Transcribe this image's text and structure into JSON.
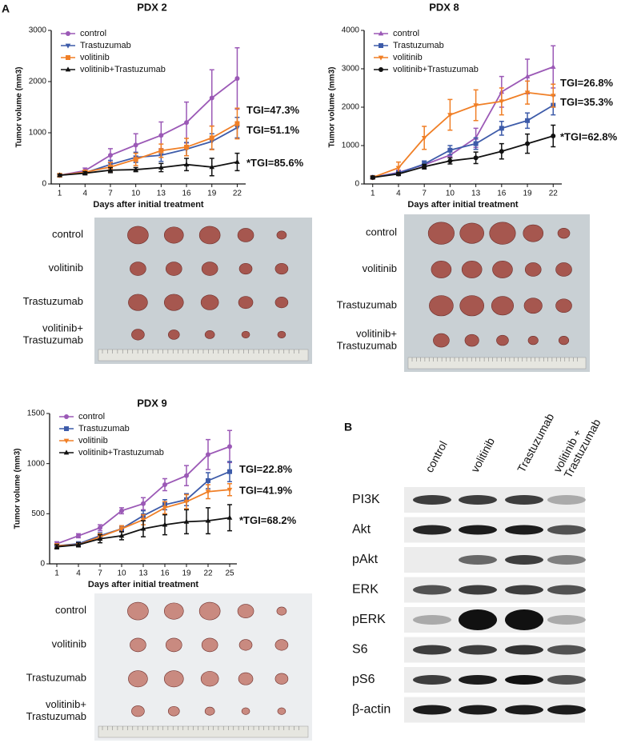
{
  "panels": {
    "a": "A",
    "b": "B"
  },
  "chart_data": [
    {
      "type": "line",
      "title": "PDX 2",
      "x_label": "Days after initial treatment",
      "y_label": "Tumor volume (mm3)",
      "x": [
        1,
        4,
        7,
        10,
        13,
        16,
        19,
        22
      ],
      "xlim": [
        0,
        23
      ],
      "xticks": [
        1,
        4,
        7,
        10,
        13,
        16,
        19,
        22
      ],
      "ylim": [
        0,
        3000
      ],
      "yticks": [
        0,
        1000,
        2000,
        3000
      ],
      "series": [
        {
          "name": "control",
          "color": "#9b59b6",
          "marker": "circle",
          "values": [
            170,
            260,
            560,
            760,
            950,
            1200,
            1680,
            2060
          ],
          "errors": [
            20,
            50,
            130,
            220,
            260,
            400,
            550,
            600
          ]
        },
        {
          "name": "Trastuzumab",
          "color": "#3d5ba9",
          "marker": "triangle-down",
          "values": [
            170,
            220,
            380,
            520,
            560,
            680,
            830,
            1100
          ],
          "errors": [
            20,
            40,
            80,
            100,
            120,
            130,
            150,
            200
          ],
          "annotation": "TGI=51.1%"
        },
        {
          "name": "volitinib",
          "color": "#f07f26",
          "marker": "square",
          "values": [
            170,
            230,
            330,
            480,
            650,
            720,
            900,
            1180
          ],
          "errors": [
            20,
            40,
            90,
            120,
            130,
            170,
            230,
            300
          ],
          "annotation": "TGI=47.3%"
        },
        {
          "name": "volitinib+Trastuzumab",
          "color": "#111111",
          "marker": "triangle-up",
          "values": [
            170,
            210,
            270,
            280,
            320,
            380,
            330,
            430
          ],
          "errors": [
            20,
            30,
            50,
            40,
            80,
            120,
            170,
            170
          ],
          "annotation": "*TGI=85.6%"
        }
      ]
    },
    {
      "type": "line",
      "title": "PDX 8",
      "x_label": "Days after initial treatment",
      "y_label": "Tumor volume (mm3)",
      "x": [
        1,
        4,
        7,
        10,
        13,
        16,
        19,
        22
      ],
      "xlim": [
        0,
        23
      ],
      "xticks": [
        1,
        4,
        7,
        10,
        13,
        16,
        19,
        22
      ],
      "ylim": [
        0,
        4000
      ],
      "yticks": [
        0,
        1000,
        2000,
        3000,
        4000
      ],
      "series": [
        {
          "name": "control",
          "color": "#9b59b6",
          "marker": "triangle-up",
          "values": [
            170,
            300,
            500,
            750,
            1200,
            2400,
            2800,
            3050
          ],
          "errors": [
            30,
            60,
            100,
            150,
            250,
            400,
            450,
            550
          ]
        },
        {
          "name": "Trastuzumab",
          "color": "#3d5ba9",
          "marker": "square",
          "values": [
            170,
            280,
            520,
            880,
            1050,
            1450,
            1650,
            2050
          ],
          "errors": [
            30,
            50,
            80,
            120,
            150,
            180,
            200,
            250
          ],
          "annotation": "TGI=35.3%"
        },
        {
          "name": "volitinib",
          "color": "#f07f26",
          "marker": "triangle-down",
          "values": [
            170,
            420,
            1200,
            1800,
            2050,
            2150,
            2380,
            2300
          ],
          "errors": [
            40,
            150,
            300,
            400,
            400,
            350,
            300,
            300
          ],
          "annotation": "TGI=26.8%"
        },
        {
          "name": "volitinib+Trastuzumab",
          "color": "#111111",
          "marker": "circle",
          "values": [
            170,
            260,
            450,
            600,
            680,
            850,
            1050,
            1250
          ],
          "errors": [
            30,
            40,
            60,
            80,
            150,
            200,
            250,
            280
          ],
          "annotation": "*TGI=62.8%"
        }
      ]
    },
    {
      "type": "line",
      "title": "PDX 9",
      "x_label": "Days after initial treatment",
      "y_label": "Tumor volume (mm3)",
      "x": [
        1,
        4,
        7,
        10,
        13,
        16,
        19,
        22,
        25
      ],
      "xlim": [
        0,
        26
      ],
      "xticks": [
        1,
        4,
        7,
        10,
        13,
        16,
        19,
        22,
        25
      ],
      "ylim": [
        0,
        1500
      ],
      "yticks": [
        0,
        500,
        1000,
        1500
      ],
      "series": [
        {
          "name": "control",
          "color": "#9b59b6",
          "marker": "circle",
          "values": [
            200,
            280,
            360,
            530,
            600,
            790,
            880,
            1090,
            1170
          ],
          "errors": [
            20,
            20,
            30,
            30,
            60,
            60,
            100,
            150,
            160
          ]
        },
        {
          "name": "Trastuzumab",
          "color": "#3d5ba9",
          "marker": "square",
          "values": [
            180,
            200,
            280,
            350,
            480,
            590,
            640,
            830,
            920
          ],
          "errors": [
            20,
            20,
            30,
            30,
            50,
            50,
            60,
            80,
            100
          ],
          "annotation": "TGI=22.8%"
        },
        {
          "name": "volitinib",
          "color": "#f07f26",
          "marker": "triangle-down",
          "values": [
            180,
            190,
            270,
            350,
            440,
            560,
            620,
            720,
            740
          ],
          "errors": [
            20,
            20,
            30,
            30,
            50,
            60,
            70,
            70,
            60
          ],
          "annotation": "TGI=41.9%"
        },
        {
          "name": "volitinib+Trastuzumab",
          "color": "#111111",
          "marker": "triangle-up",
          "values": [
            170,
            190,
            250,
            280,
            350,
            390,
            420,
            430,
            460
          ],
          "errors": [
            20,
            20,
            40,
            40,
            80,
            100,
            120,
            130,
            130
          ],
          "annotation": "*TGI=68.2%"
        }
      ]
    }
  ],
  "photos": [
    {
      "rows": [
        [
          "control"
        ],
        [
          "volitinib"
        ],
        [
          "Trastuzumab"
        ],
        [
          "volitinib+",
          "Trastuzumab"
        ]
      ]
    },
    {
      "rows": [
        [
          "control"
        ],
        [
          "volitinib"
        ],
        [
          "Trastuzumab"
        ],
        [
          "volitinib+",
          "Trastuzumab"
        ]
      ]
    },
    {
      "rows": [
        [
          "control"
        ],
        [
          "volitinib"
        ],
        [
          "Trastuzumab"
        ],
        [
          "volitinib+",
          "Trastuzumab"
        ]
      ]
    }
  ],
  "blot": {
    "columns": [
      [
        "control"
      ],
      [
        "volitinib"
      ],
      [
        "Trastuzumab"
      ],
      [
        "volitinib +",
        "Trastuzumab"
      ]
    ],
    "rows": [
      "PI3K",
      "Akt",
      "pAkt",
      "ERK",
      "pERK",
      "S6",
      "pS6",
      "β-actin"
    ]
  }
}
